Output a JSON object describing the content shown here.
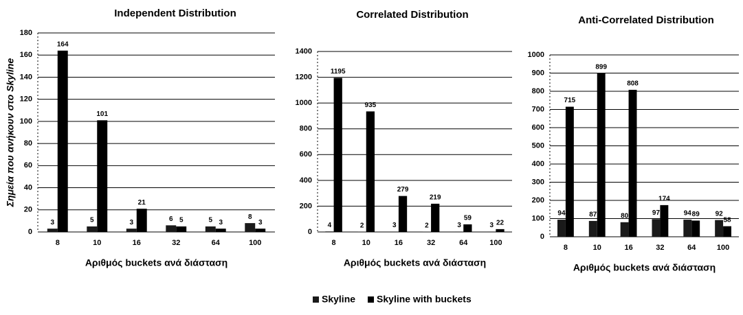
{
  "chart_data": [
    {
      "type": "bar",
      "title": "Independent Distribution",
      "y_label": "Σημεία που ανήκουν στο Skyline",
      "x_label": "Αριθμός buckets ανά διάσταση",
      "categories": [
        "8",
        "10",
        "16",
        "32",
        "64",
        "100"
      ],
      "series": [
        {
          "name": "Skyline",
          "color": "#1a1a1a",
          "values": [
            3,
            5,
            3,
            6,
            5,
            8
          ]
        },
        {
          "name": "Skyline with buckets",
          "color": "#000000",
          "values": [
            164,
            101,
            21,
            5,
            3,
            3
          ]
        }
      ],
      "ylim": [
        0,
        180
      ],
      "yticks": [
        0,
        20,
        40,
        60,
        80,
        100,
        120,
        140,
        160,
        180
      ],
      "grid": true
    },
    {
      "type": "bar",
      "title": "Correlated Distribution",
      "x_label": "Αριθμός buckets ανά διάσταση",
      "categories": [
        "8",
        "10",
        "16",
        "32",
        "64",
        "100"
      ],
      "series": [
        {
          "name": "Skyline",
          "color": "#1a1a1a",
          "values": [
            4,
            2,
            3,
            2,
            3,
            3
          ]
        },
        {
          "name": "Skyline with buckets",
          "color": "#000000",
          "values": [
            1195,
            935,
            279,
            219,
            59,
            22
          ]
        }
      ],
      "ylim": [
        0,
        1400
      ],
      "yticks": [
        0,
        200,
        400,
        600,
        800,
        1000,
        1200,
        1400
      ],
      "grid": true
    },
    {
      "type": "bar",
      "title": "Anti-Correlated Distribution",
      "x_label": "Αριθμός buckets ανά διάσταση",
      "categories": [
        "8",
        "10",
        "16",
        "32",
        "64",
        "100"
      ],
      "series": [
        {
          "name": "Skyline",
          "color": "#1a1a1a",
          "values": [
            94,
            87,
            80,
            97,
            94,
            92
          ]
        },
        {
          "name": "Skyline with buckets",
          "color": "#000000",
          "values": [
            715,
            899,
            808,
            174,
            89,
            58
          ]
        }
      ],
      "ylim": [
        0,
        1000
      ],
      "yticks": [
        0,
        100,
        200,
        300,
        400,
        500,
        600,
        700,
        800,
        900,
        1000
      ],
      "grid": true
    }
  ]
}
